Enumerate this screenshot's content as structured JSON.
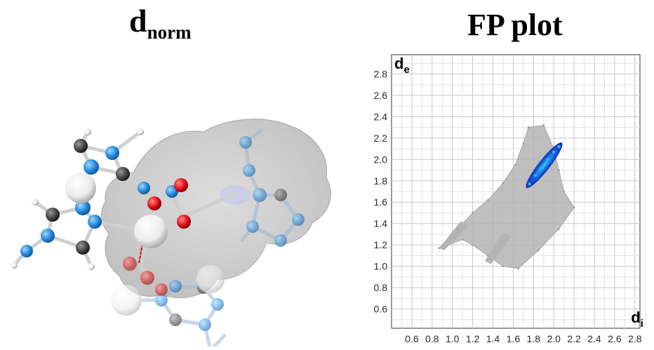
{
  "titles": {
    "left_main": "d",
    "left_sub": "norm",
    "right": "FP plot"
  },
  "colors": {
    "oxygen": "#e8141c",
    "nitrogen": "#2a8fe0",
    "carbon": "#4a4a4a",
    "hydrogen": "#f2f2f2",
    "metal": "#f4f4f4",
    "surface": "#b9b9b9",
    "fp_gray": "#b4b4b4",
    "fp_blue": "#1a5be0",
    "fp_cyan": "#23b8e8"
  },
  "molecule": {
    "surface_label": "dnorm surface",
    "icons": [
      "atom-icon",
      "bond-icon"
    ]
  },
  "chart_data": {
    "type": "scatter",
    "title": "FP plot",
    "xlabel": "di",
    "ylabel": "de",
    "xlim": [
      0.4,
      2.85
    ],
    "ylim": [
      0.42,
      2.98
    ],
    "x_ticks": [
      "0.6",
      "0.8",
      "1.0",
      "1.2",
      "1.4",
      "1.6",
      "1.8",
      "2.0",
      "2.2",
      "2.4",
      "2.6",
      "2.8"
    ],
    "y_ticks": [
      "0.6",
      "0.8",
      "1.0",
      "1.2",
      "1.4",
      "1.6",
      "1.8",
      "2.0",
      "2.2",
      "2.4",
      "2.6",
      "2.8"
    ],
    "grid": true,
    "series": [
      {
        "values": [
          [
            0.87,
            1.17
          ],
          [
            1.05,
            1.35
          ],
          [
            1.2,
            1.5
          ],
          [
            1.35,
            1.62
          ],
          [
            1.5,
            1.78
          ],
          [
            1.62,
            1.95
          ],
          [
            1.7,
            2.15
          ],
          [
            1.75,
            2.3
          ],
          [
            1.9,
            2.32
          ],
          [
            2.0,
            2.1
          ],
          [
            2.05,
            1.9
          ],
          [
            2.1,
            1.7
          ],
          [
            2.2,
            1.55
          ],
          [
            2.05,
            1.35
          ],
          [
            1.85,
            1.15
          ],
          [
            1.65,
            0.98
          ],
          [
            1.5,
            1.0
          ],
          [
            1.35,
            1.1
          ],
          [
            1.2,
            1.2
          ],
          [
            1.1,
            1.25
          ]
        ]
      },
      {
        "values": [
          [
            1.76,
            1.77
          ],
          [
            1.82,
            1.85
          ],
          [
            1.88,
            1.92
          ],
          [
            1.94,
            2.0
          ],
          [
            2.0,
            2.07
          ],
          [
            2.05,
            2.12
          ]
        ]
      }
    ]
  }
}
